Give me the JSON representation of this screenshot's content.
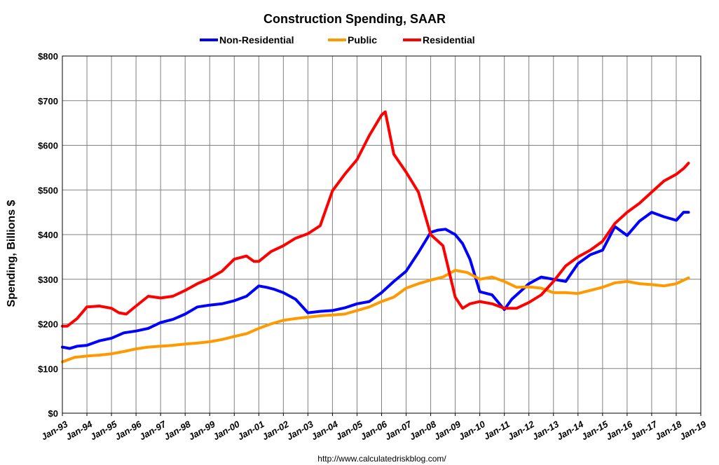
{
  "chart_data": {
    "type": "line",
    "title": "Construction Spending, SAAR",
    "ylabel": "Spending, Billions $",
    "xlabel": "",
    "source": "http://www.calculatedriskblog.com/",
    "ylim": [
      0,
      800
    ],
    "xlim": [
      1993,
      2019
    ],
    "grid": true,
    "legend_position": "top-center",
    "yticks": [
      "$0",
      "$100",
      "$200",
      "$300",
      "$400",
      "$500",
      "$600",
      "$700",
      "$800"
    ],
    "xticks": [
      "Jan-93",
      "Jan-94",
      "Jan-95",
      "Jan-96",
      "Jan-97",
      "Jan-98",
      "Jan-99",
      "Jan-00",
      "Jan-01",
      "Jan-02",
      "Jan-03",
      "Jan-04",
      "Jan-05",
      "Jan-06",
      "Jan-07",
      "Jan-08",
      "Jan-09",
      "Jan-10",
      "Jan-11",
      "Jan-12",
      "Jan-13",
      "Jan-14",
      "Jan-15",
      "Jan-16",
      "Jan-17",
      "Jan-18",
      "Jan-19"
    ],
    "series": [
      {
        "name": "Non-Residential",
        "color": "#0000ff",
        "x": [
          1993.0,
          1993.3,
          1993.6,
          1994.0,
          1994.5,
          1995.0,
          1995.5,
          1996.0,
          1996.5,
          1997.0,
          1997.5,
          1998.0,
          1998.5,
          1999.0,
          1999.5,
          2000.0,
          2000.5,
          2001.0,
          2001.3,
          2001.6,
          2002.0,
          2002.5,
          2003.0,
          2003.5,
          2004.0,
          2004.5,
          2005.0,
          2005.5,
          2006.0,
          2006.5,
          2007.0,
          2007.5,
          2008.0,
          2008.3,
          2008.6,
          2009.0,
          2009.3,
          2009.6,
          2010.0,
          2010.5,
          2011.0,
          2011.3,
          2011.6,
          2012.0,
          2012.5,
          2013.0,
          2013.5,
          2014.0,
          2014.5,
          2015.0,
          2015.5,
          2016.0,
          2016.5,
          2017.0,
          2017.5,
          2018.0,
          2018.3,
          2018.5
        ],
        "values": [
          148,
          145,
          150,
          152,
          162,
          168,
          180,
          184,
          190,
          203,
          210,
          222,
          238,
          242,
          245,
          252,
          262,
          285,
          282,
          278,
          270,
          255,
          225,
          228,
          230,
          236,
          245,
          250,
          270,
          295,
          318,
          360,
          405,
          410,
          412,
          400,
          380,
          345,
          272,
          265,
          232,
          255,
          270,
          290,
          305,
          300,
          295,
          335,
          355,
          365,
          418,
          398,
          430,
          450,
          440,
          432,
          450,
          450
        ]
      },
      {
        "name": "Public",
        "color": "#ff9900",
        "x": [
          1993.0,
          1993.5,
          1994.0,
          1994.5,
          1995.0,
          1995.5,
          1996.0,
          1996.5,
          1997.0,
          1997.5,
          1998.0,
          1998.5,
          1999.0,
          1999.5,
          2000.0,
          2000.5,
          2001.0,
          2001.5,
          2002.0,
          2002.5,
          2003.0,
          2003.5,
          2004.0,
          2004.5,
          2005.0,
          2005.5,
          2006.0,
          2006.5,
          2007.0,
          2007.5,
          2008.0,
          2008.5,
          2009.0,
          2009.5,
          2010.0,
          2010.5,
          2011.0,
          2011.5,
          2012.0,
          2012.5,
          2013.0,
          2013.5,
          2014.0,
          2014.5,
          2015.0,
          2015.5,
          2016.0,
          2016.5,
          2017.0,
          2017.5,
          2018.0,
          2018.5
        ],
        "values": [
          115,
          125,
          128,
          130,
          133,
          138,
          144,
          148,
          150,
          152,
          155,
          157,
          160,
          165,
          172,
          178,
          190,
          200,
          208,
          212,
          215,
          218,
          220,
          222,
          230,
          238,
          250,
          260,
          280,
          290,
          298,
          305,
          320,
          315,
          300,
          305,
          295,
          282,
          283,
          280,
          270,
          270,
          268,
          275,
          282,
          292,
          295,
          290,
          288,
          285,
          290,
          303
        ]
      },
      {
        "name": "Residential",
        "color": "#ff0000",
        "x": [
          1993.0,
          1993.2,
          1993.6,
          1994.0,
          1994.5,
          1995.0,
          1995.3,
          1995.6,
          1996.0,
          1996.5,
          1997.0,
          1997.5,
          1998.0,
          1998.5,
          1999.0,
          1999.5,
          2000.0,
          2000.5,
          2000.8,
          2001.0,
          2001.5,
          2002.0,
          2002.5,
          2003.0,
          2003.5,
          2004.0,
          2004.5,
          2005.0,
          2005.5,
          2006.0,
          2006.15,
          2006.5,
          2007.0,
          2007.5,
          2008.0,
          2008.5,
          2009.0,
          2009.3,
          2009.6,
          2010.0,
          2010.5,
          2011.0,
          2011.5,
          2012.0,
          2012.5,
          2013.0,
          2013.5,
          2014.0,
          2014.5,
          2015.0,
          2015.5,
          2016.0,
          2016.5,
          2017.0,
          2017.5,
          2018.0,
          2018.3,
          2018.5
        ],
        "values": [
          195,
          195,
          212,
          238,
          240,
          235,
          225,
          222,
          240,
          262,
          258,
          262,
          275,
          290,
          302,
          318,
          345,
          352,
          340,
          340,
          362,
          375,
          392,
          402,
          420,
          498,
          535,
          568,
          622,
          668,
          675,
          580,
          540,
          495,
          400,
          375,
          260,
          235,
          245,
          250,
          245,
          235,
          235,
          248,
          265,
          295,
          330,
          350,
          365,
          385,
          425,
          450,
          470,
          495,
          520,
          535,
          548,
          560
        ]
      }
    ]
  }
}
